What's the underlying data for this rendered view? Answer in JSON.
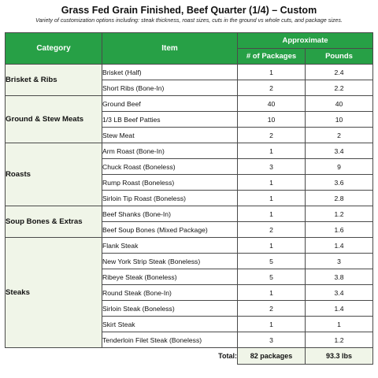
{
  "title": "Grass Fed Grain Finished, Beef Quarter (1/4) – Custom",
  "subtitle": "Variety of customization options including: steak thickness, roast sizes, cuts in the ground vs whole cuts, and package sizes.",
  "headers": {
    "category": "Category",
    "item": "Item",
    "approximate": "Approximate",
    "packages": "# of Packages",
    "pounds": "Pounds"
  },
  "groups": [
    {
      "category": "Brisket & Ribs",
      "rows": [
        {
          "item": "Brisket (Half)",
          "packages": "1",
          "pounds": "2.4"
        },
        {
          "item": "Short Ribs (Bone-In)",
          "packages": "2",
          "pounds": "2.2"
        }
      ]
    },
    {
      "category": "Ground & Stew Meats",
      "rows": [
        {
          "item": "Ground Beef",
          "packages": "40",
          "pounds": "40"
        },
        {
          "item": "1/3 LB Beef Patties",
          "packages": "10",
          "pounds": "10"
        },
        {
          "item": "Stew Meat",
          "packages": "2",
          "pounds": "2"
        }
      ]
    },
    {
      "category": "Roasts",
      "rows": [
        {
          "item": " Arm Roast (Bone-In)",
          "packages": "1",
          "pounds": "3.4"
        },
        {
          "item": "Chuck Roast (Boneless)",
          "packages": "3",
          "pounds": "9"
        },
        {
          "item": "Rump Roast (Boneless)",
          "packages": "1",
          "pounds": "3.6"
        },
        {
          "item": "Sirloin Tip Roast (Boneless)",
          "packages": "1",
          "pounds": "2.8"
        }
      ]
    },
    {
      "category": "Soup Bones & Extras",
      "rows": [
        {
          "item": "Beef Shanks (Bone-In)",
          "packages": "1",
          "pounds": "1.2"
        },
        {
          "item": "Beef Soup Bones (Mixed Package)",
          "packages": "2",
          "pounds": "1.6"
        }
      ]
    },
    {
      "category": "Steaks",
      "rows": [
        {
          "item": "Flank Steak",
          "packages": "1",
          "pounds": "1.4"
        },
        {
          "item": "New York Strip Steak (Boneless)",
          "packages": "5",
          "pounds": "3"
        },
        {
          "item": "Ribeye Steak (Boneless)",
          "packages": "5",
          "pounds": "3.8"
        },
        {
          "item": "Round Steak (Bone-In)",
          "packages": "1",
          "pounds": "3.4"
        },
        {
          "item": "Sirloin Steak (Boneless)",
          "packages": "2",
          "pounds": "1.4"
        },
        {
          "item": "Skirt Steak",
          "packages": "1",
          "pounds": "1"
        },
        {
          "item": "Tenderloin Filet Steak (Boneless)",
          "packages": "3",
          "pounds": "1.2"
        }
      ]
    }
  ],
  "total": {
    "label": "Total:",
    "packages": "82 packages",
    "pounds": "93.3 lbs"
  },
  "colors": {
    "header_green": "#27a046",
    "category_fill": "#f0f5e8"
  }
}
